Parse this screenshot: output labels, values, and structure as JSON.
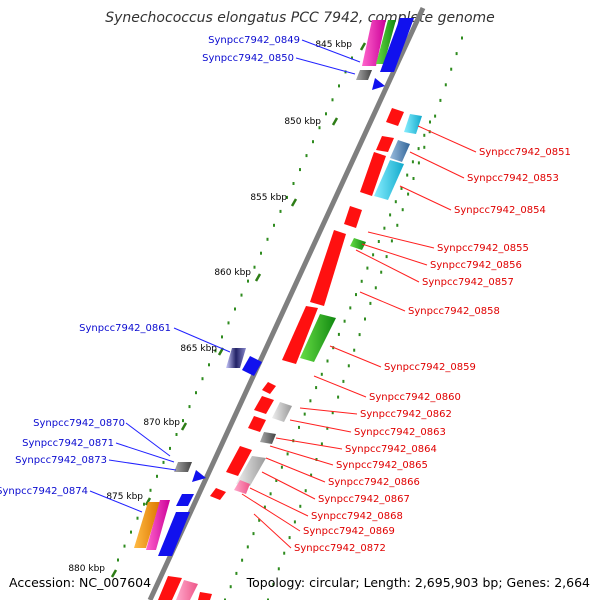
{
  "title": "Synechococcus elongatus PCC 7942, complete genome",
  "accession": "Accession: NC_007604",
  "summary": "Topology: circular; Length: 2,695,903 bp; Genes: 2,664",
  "colors": {
    "backbone": "#7f7f7f",
    "tick_mark": "#2e7d16",
    "dot": "#2e8b1e",
    "left_label": "#0b0bd0",
    "right_label": "#e00000",
    "left_leader": "#2222ff",
    "right_leader": "#ff2020"
  },
  "ticks": [
    "845 kbp",
    "850 kbp",
    "855 kbp",
    "860 kbp",
    "865 kbp",
    "870 kbp",
    "875 kbp",
    "880 kbp"
  ],
  "genes_left": [
    {
      "label": "Synpcc7942_0849"
    },
    {
      "label": "Synpcc7942_0850"
    },
    {
      "label": "Synpcc7942_0861"
    },
    {
      "label": "Synpcc7942_0870"
    },
    {
      "label": "Synpcc7942_0871"
    },
    {
      "label": "Synpcc7942_0873"
    },
    {
      "label": "Synpcc7942_0874"
    }
  ],
  "genes_right": [
    {
      "label": "Synpcc7942_0851"
    },
    {
      "label": "Synpcc7942_0853"
    },
    {
      "label": "Synpcc7942_0854"
    },
    {
      "label": "Synpcc7942_0855"
    },
    {
      "label": "Synpcc7942_0856"
    },
    {
      "label": "Synpcc7942_0857"
    },
    {
      "label": "Synpcc7942_0858"
    },
    {
      "label": "Synpcc7942_0859"
    },
    {
      "label": "Synpcc7942_0860"
    },
    {
      "label": "Synpcc7942_0862"
    },
    {
      "label": "Synpcc7942_0863"
    },
    {
      "label": "Synpcc7942_0864"
    },
    {
      "label": "Synpcc7942_0865"
    },
    {
      "label": "Synpcc7942_0866"
    },
    {
      "label": "Synpcc7942_0867"
    },
    {
      "label": "Synpcc7942_0868"
    },
    {
      "label": "Synpcc7942_0869"
    },
    {
      "label": "Synpcc7942_0872"
    }
  ]
}
